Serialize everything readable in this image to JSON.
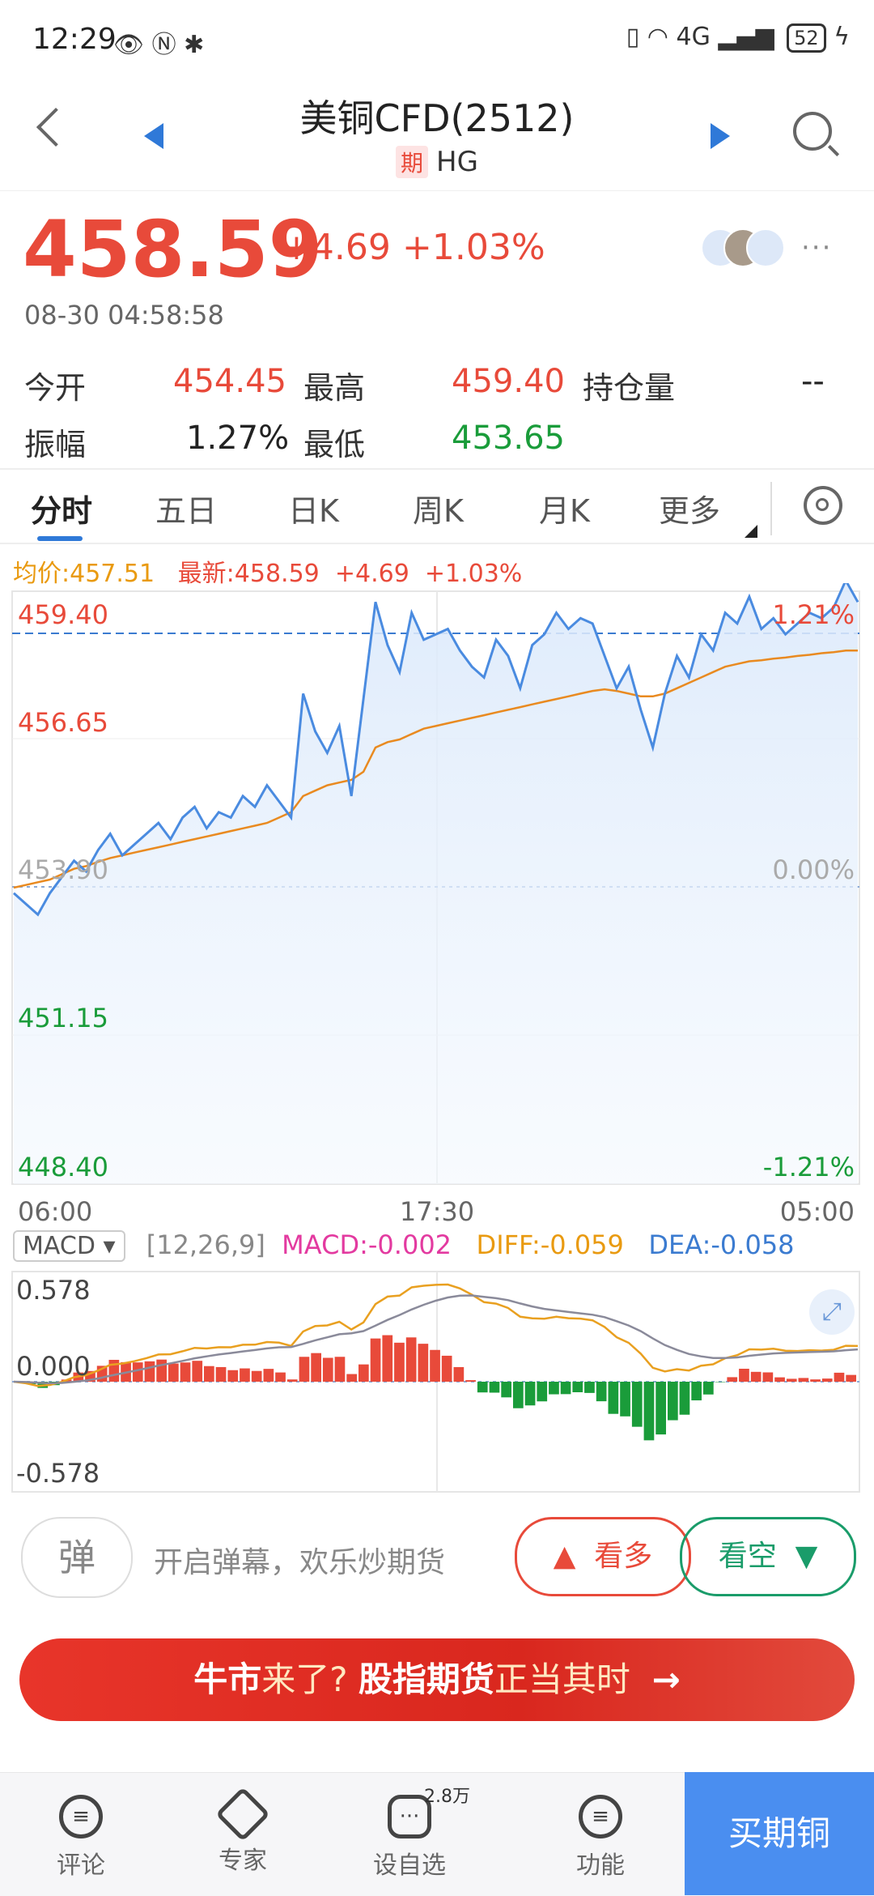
{
  "status_bar": {
    "time": "12:29",
    "left_icons": "👁 Ⓝ ✱",
    "right_icons": "▯ ◠ 4G ▂▄▆",
    "battery": "52",
    "charging": "ϟ"
  },
  "header": {
    "title": "美铜CFD(2512)",
    "badge": "期",
    "code": "HG"
  },
  "quote": {
    "price": "458.59",
    "change": "+4.69",
    "change_pct": "+1.03%",
    "datetime": "08-30 04:58:58",
    "more": "···"
  },
  "stats": {
    "open_label": "今开",
    "open": "454.45",
    "high_label": "最高",
    "high": "459.40",
    "oi_label": "持仓量",
    "oi": "--",
    "amp_label": "振幅",
    "amp": "1.27%",
    "low_label": "最低",
    "low": "453.65"
  },
  "tabs": [
    "分时",
    "五日",
    "日K",
    "周K",
    "月K",
    "更多"
  ],
  "info_row": {
    "avg": "均价:457.51",
    "latest": "最新:458.59",
    "chg": "+4.69",
    "pct": "+1.03%"
  },
  "chart_labels": {
    "y_left": [
      "459.40",
      "456.65",
      "453.90",
      "451.15",
      "448.40"
    ],
    "y_right": [
      "1.21%",
      "0.00%",
      "-1.21%"
    ],
    "x": [
      "06:00",
      "17:30",
      "05:00"
    ]
  },
  "chart_data": {
    "type": "line",
    "x_labels": [
      "06:00",
      "17:30",
      "05:00"
    ],
    "ylim": [
      448.4,
      459.4
    ],
    "prev_close": 453.9,
    "series": [
      {
        "name": "",
        "values": [
          453.8,
          453.6,
          453.4,
          453.8,
          454.1,
          454.4,
          454.2,
          454.6,
          454.9,
          454.5,
          454.7,
          454.9,
          455.1,
          454.8,
          455.2,
          455.4,
          455.0,
          455.3,
          455.2,
          455.6,
          455.4,
          455.8,
          455.5,
          455.2,
          457.5,
          456.8,
          456.4,
          456.9,
          455.6,
          457.4,
          459.2,
          458.4,
          457.9,
          459.0,
          458.5,
          458.6,
          458.7,
          458.3,
          458.0,
          457.8,
          458.5,
          458.2,
          457.6,
          458.4,
          458.6,
          459.0,
          458.7,
          458.9,
          458.8,
          458.2,
          457.6,
          458.0,
          457.2,
          456.5,
          457.5,
          458.2,
          457.8,
          458.6,
          458.3,
          459.0,
          458.8,
          459.3,
          458.7,
          458.9,
          458.6,
          458.8,
          459.0,
          458.9,
          459.1,
          459.6,
          459.2
        ]
      },
      {
        "name": "",
        "values": [
          453.9,
          453.95,
          454.0,
          454.05,
          454.15,
          454.25,
          454.3,
          454.38,
          454.45,
          454.5,
          454.55,
          454.6,
          454.65,
          454.7,
          454.75,
          454.8,
          454.85,
          454.9,
          454.95,
          455.0,
          455.05,
          455.1,
          455.2,
          455.3,
          455.6,
          455.7,
          455.8,
          455.85,
          455.9,
          456.05,
          456.5,
          456.6,
          456.65,
          456.75,
          456.85,
          456.9,
          456.95,
          457.0,
          457.05,
          457.1,
          457.15,
          457.2,
          457.25,
          457.3,
          457.35,
          457.4,
          457.45,
          457.5,
          457.55,
          457.58,
          457.55,
          457.5,
          457.45,
          457.45,
          457.5,
          457.6,
          457.7,
          457.8,
          457.9,
          458.0,
          458.05,
          458.1,
          458.12,
          458.15,
          458.17,
          458.2,
          458.22,
          458.25,
          458.27,
          458.3,
          458.3
        ]
      }
    ]
  },
  "macd": {
    "select": "MACD",
    "params": "[12,26,9]",
    "macd": "MACD:-0.002",
    "diff": "DIFF:-0.059",
    "dea": "DEA:-0.058",
    "y": [
      "0.578",
      "0.000",
      "-0.578"
    ]
  },
  "comment_bar": {
    "danmu": "弹",
    "placeholder": "开启弹幕，欢乐炒期货",
    "long": "看多",
    "short": "看空"
  },
  "banner": {
    "part1": "牛市",
    "part2": "来了? ",
    "part3": "股指期货",
    "part4": "正当其时",
    "arrow": "→"
  },
  "bottom_nav": {
    "items": [
      {
        "label": "评论",
        "icon": "chat-icon"
      },
      {
        "label": "专家",
        "icon": "expert-icon"
      },
      {
        "label": "设自选",
        "icon": "watchlist-icon"
      },
      {
        "label": "功能",
        "icon": "menu-icon"
      }
    ],
    "watch_count": "2.8万",
    "buy": "买期铜"
  }
}
